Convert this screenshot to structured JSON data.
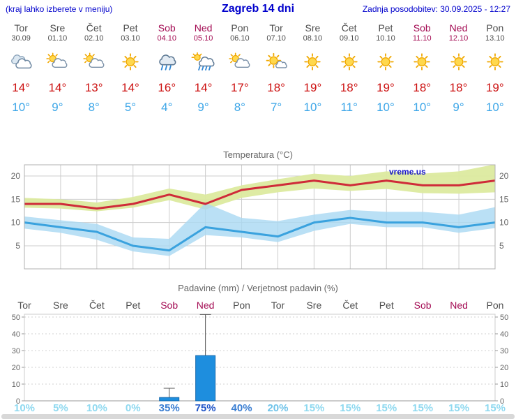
{
  "header": {
    "hint": "(kraj lahko izberete v meniju)",
    "title": "Zagreb 14 dni",
    "updated": "Zadnja posodobitev: 30.09.2025 - 12:27"
  },
  "colors": {
    "link_blue": "#0000cc",
    "weekday_text": "#4d4d4d",
    "weekend_text": "#a30a52",
    "temp_high": "#cc1111",
    "temp_low": "#3fa7e8",
    "chart_title": "#666666",
    "grid": "#cccccc",
    "max_line": "#cf2b39",
    "min_line": "#3aa2de",
    "max_band": "#dcea9f",
    "min_band": "#a9d8f3",
    "bar_fill": "#1e8ede",
    "bar_stroke": "#1569ad",
    "prob_low": "#8fd9f0",
    "prob_20": "#6fc3e9",
    "prob_mid": "#3a7ed2",
    "prob_high": "#2156c8",
    "watermark": "#1515c8"
  },
  "days": [
    {
      "name": "Tor",
      "date": "30.09",
      "icon": "cloudy",
      "high": "14°",
      "low": "10°",
      "weekend": false
    },
    {
      "name": "Sre",
      "date": "01.10",
      "icon": "partly-cloudy",
      "high": "14°",
      "low": "9°",
      "weekend": false
    },
    {
      "name": "Čet",
      "date": "02.10",
      "icon": "partly-cloudy",
      "high": "13°",
      "low": "8°",
      "weekend": false
    },
    {
      "name": "Pet",
      "date": "03.10",
      "icon": "sunny",
      "high": "14°",
      "low": "5°",
      "weekend": false
    },
    {
      "name": "Sob",
      "date": "04.10",
      "icon": "rain",
      "high": "16°",
      "low": "4°",
      "weekend": true
    },
    {
      "name": "Ned",
      "date": "05.10",
      "icon": "rain-sun",
      "high": "14°",
      "low": "9°",
      "weekend": true
    },
    {
      "name": "Pon",
      "date": "06.10",
      "icon": "partly-cloudy",
      "high": "17°",
      "low": "8°",
      "weekend": false
    },
    {
      "name": "Tor",
      "date": "07.10",
      "icon": "mostly-sunny",
      "high": "18°",
      "low": "7°",
      "weekend": false
    },
    {
      "name": "Sre",
      "date": "08.10",
      "icon": "sunny",
      "high": "19°",
      "low": "10°",
      "weekend": false
    },
    {
      "name": "Čet",
      "date": "09.10",
      "icon": "sunny",
      "high": "18°",
      "low": "11°",
      "weekend": false
    },
    {
      "name": "Pet",
      "date": "10.10",
      "icon": "sunny",
      "high": "19°",
      "low": "10°",
      "weekend": false
    },
    {
      "name": "Sob",
      "date": "11.10",
      "icon": "sunny",
      "high": "18°",
      "low": "10°",
      "weekend": true
    },
    {
      "name": "Ned",
      "date": "12.10",
      "icon": "sunny",
      "high": "18°",
      "low": "9°",
      "weekend": true
    },
    {
      "name": "Pon",
      "date": "13.10",
      "icon": "sunny",
      "high": "19°",
      "low": "10°",
      "weekend": false
    }
  ],
  "chart_data": [
    {
      "type": "line",
      "title": "Temperatura (°C)",
      "categories": [
        "Tor",
        "Sre",
        "Čet",
        "Pet",
        "Sob",
        "Ned",
        "Pon",
        "Tor",
        "Sre",
        "Čet",
        "Pet",
        "Sob",
        "Ned",
        "Pon"
      ],
      "series": [
        {
          "name": "max",
          "values": [
            14,
            14,
            13,
            14,
            16,
            14,
            17,
            18,
            19,
            18,
            19,
            18,
            18,
            19
          ]
        },
        {
          "name": "min",
          "values": [
            10,
            9,
            8,
            5,
            4,
            9,
            8,
            7,
            10,
            11,
            10,
            10,
            9,
            10
          ]
        },
        {
          "name": "max_range_upper",
          "values": [
            15.3,
            15,
            14.3,
            15.5,
            17.3,
            16,
            18,
            19.3,
            20.5,
            20,
            21,
            20.5,
            21,
            22.5
          ]
        },
        {
          "name": "max_range_lower",
          "values": [
            13.2,
            13,
            12.4,
            13.2,
            14.8,
            12.8,
            15.3,
            16.5,
            17.3,
            16.8,
            17.2,
            16.3,
            16.2,
            16.5
          ]
        },
        {
          "name": "min_range_upper",
          "values": [
            11.3,
            10.5,
            9.7,
            6.8,
            6.5,
            14.2,
            11,
            10.3,
            11.7,
            12.7,
            12.3,
            12.3,
            11.7,
            13.3
          ]
        },
        {
          "name": "min_range_lower",
          "values": [
            8.7,
            7.8,
            6.3,
            3.8,
            2.8,
            7.3,
            6.8,
            5.8,
            8.2,
            9.7,
            9,
            9,
            7.8,
            8.8
          ]
        }
      ],
      "yticks": [
        5,
        10,
        15,
        20
      ],
      "ylim": [
        0,
        22.3
      ],
      "grid": true,
      "legend": "none",
      "watermark": "vreme.us"
    },
    {
      "type": "bar",
      "title": "Padavine (mm) / Verjetnost padavin (%)",
      "categories": [
        "Tor",
        "Sre",
        "Čet",
        "Pet",
        "Sob",
        "Ned",
        "Pon",
        "Tor",
        "Sre",
        "Čet",
        "Pet",
        "Sob",
        "Ned",
        "Pon"
      ],
      "precip_mm": [
        0,
        0,
        0,
        0,
        2,
        27,
        0,
        0,
        0,
        0,
        0,
        0,
        0,
        0
      ],
      "precip_max_mm": [
        0,
        0,
        0,
        0,
        7.5,
        51.5,
        0,
        0,
        0,
        0,
        0,
        0,
        0,
        0
      ],
      "probability_pct": [
        10,
        5,
        10,
        0,
        35,
        75,
        40,
        20,
        15,
        15,
        15,
        15,
        15,
        15
      ],
      "yticks": [
        0,
        10,
        20,
        30,
        40,
        50
      ],
      "ylim": [
        0,
        52
      ],
      "grid": true
    }
  ]
}
